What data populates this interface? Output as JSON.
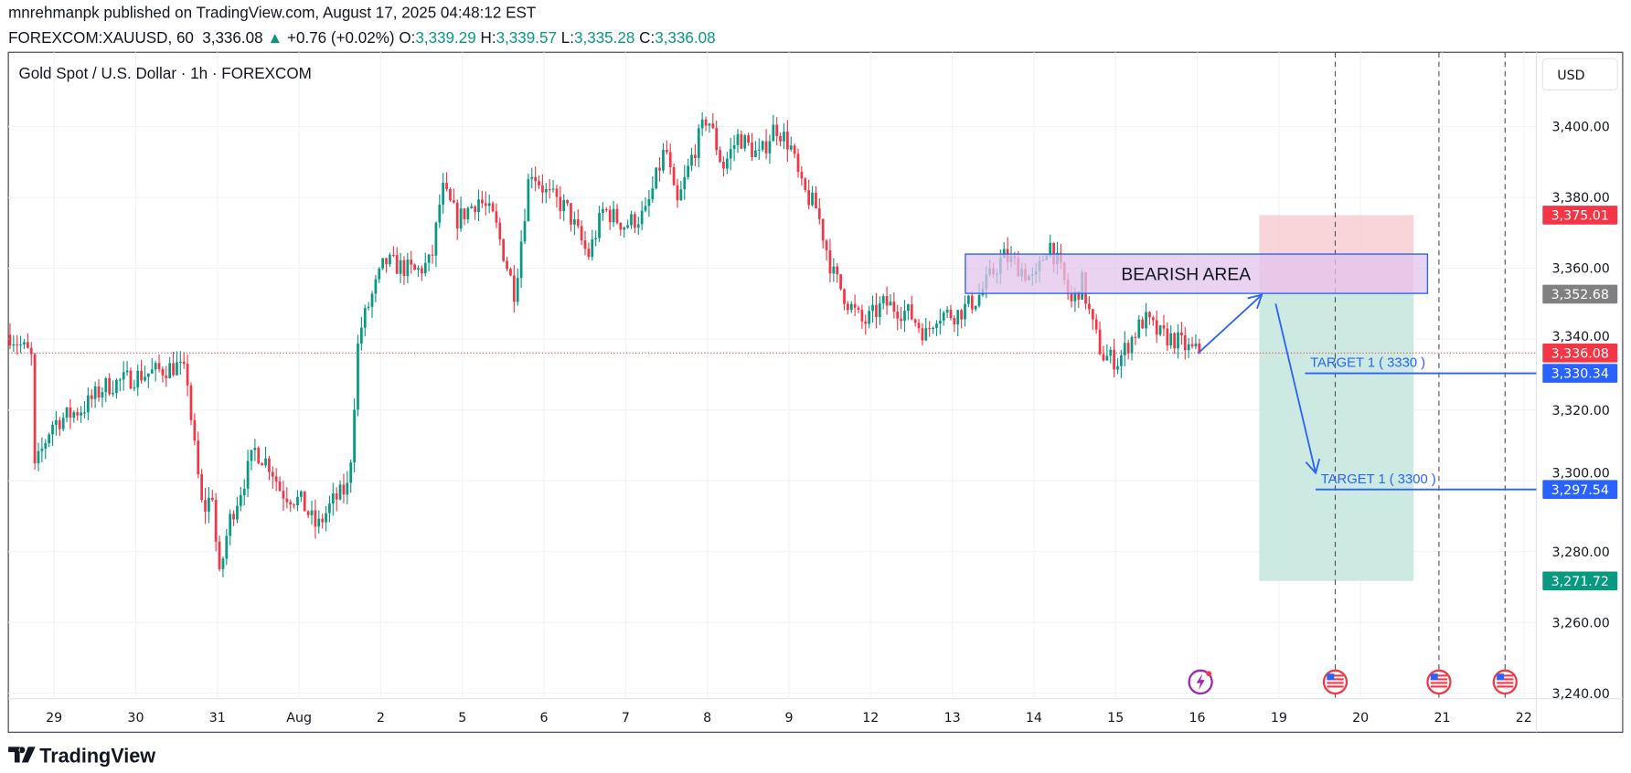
{
  "header": {
    "published_line": "mnrehmanpk published on TradingView.com, August 17, 2025 04:48:12 EST",
    "symbol": "FOREXCOM:XAUUSD, 60",
    "last": "3,336.08",
    "change": "+0.76 (+0.02%)",
    "o_label": "O:",
    "o": "3,339.29",
    "h_label": "H:",
    "h": "3,339.57",
    "l_label": "L:",
    "l": "3,335.28",
    "c_label": "C:",
    "c": "3,336.08"
  },
  "legend_title": "Gold Spot / U.S. Dollar · 1h · FOREXCOM",
  "currency": "USD",
  "footer_brand": "TradingView",
  "colors": {
    "up": "#089981",
    "down": "#f23645",
    "drawing": "#2962ff",
    "stop_zone": "#f7c9cf",
    "target_zone": "#c4e6dd",
    "bearish_fill": "#e1c4ec"
  },
  "chart_data": {
    "type": "candlestick",
    "title": "Gold Spot / U.S. Dollar · 1h · FOREXCOM",
    "xlabel": "",
    "ylabel": "USD",
    "ylim": [
      3236,
      3424
    ],
    "yticks": [
      "3,400.00",
      "3,380.00",
      "3,360.00",
      "3,340.00",
      "3,320.00",
      "3,300.00",
      "3,280.00",
      "3,260.00",
      "3,240.00"
    ],
    "ytick_values": [
      3400,
      3380,
      3360,
      3340,
      3320,
      3300,
      3280,
      3260,
      3240
    ],
    "xticks": [
      "29",
      "30",
      "31",
      "Aug",
      "2",
      "5",
      "6",
      "7",
      "8",
      "9",
      "12",
      "13",
      "14",
      "15",
      "16",
      "19",
      "20",
      "21",
      "22"
    ],
    "grid": true,
    "price_path_day_price": [
      [
        -0.54,
        3341.2
      ],
      [
        -0.28,
        3335.3
      ],
      [
        -0.24,
        3302.8
      ],
      [
        -0.03,
        3316.1
      ],
      [
        0.36,
        3320.6
      ],
      [
        0.61,
        3326.5
      ],
      [
        0.99,
        3329.4
      ],
      [
        1.25,
        3330.9
      ],
      [
        1.5,
        3332.4
      ],
      [
        1.63,
        3329.4
      ],
      [
        1.69,
        3314.6
      ],
      [
        1.82,
        3291.0
      ],
      [
        1.95,
        3296.9
      ],
      [
        2.01,
        3270.3
      ],
      [
        2.14,
        3288.1
      ],
      [
        2.46,
        3308.7
      ],
      [
        2.65,
        3304.3
      ],
      [
        2.78,
        3296.9
      ],
      [
        3.03,
        3294.0
      ],
      [
        3.22,
        3286.6
      ],
      [
        3.41,
        3294.0
      ],
      [
        3.61,
        3298.4
      ],
      [
        3.73,
        3341.2
      ],
      [
        3.86,
        3350.1
      ],
      [
        4.05,
        3361.9
      ],
      [
        4.43,
        3358.9
      ],
      [
        4.62,
        3361.9
      ],
      [
        4.75,
        3382.6
      ],
      [
        4.94,
        3373.7
      ],
      [
        5.2,
        3379.6
      ],
      [
        5.39,
        3373.7
      ],
      [
        5.64,
        3353.0
      ],
      [
        5.83,
        3388.5
      ],
      [
        6.03,
        3381.1
      ],
      [
        6.28,
        3376.7
      ],
      [
        6.54,
        3363.4
      ],
      [
        6.73,
        3376.7
      ],
      [
        6.98,
        3372.2
      ],
      [
        7.24,
        3375.2
      ],
      [
        7.49,
        3394.4
      ],
      [
        7.62,
        3376.7
      ],
      [
        7.81,
        3391.4
      ],
      [
        8.0,
        3403.2
      ],
      [
        8.19,
        3388.5
      ],
      [
        8.38,
        3397.3
      ],
      [
        8.64,
        3391.4
      ],
      [
        8.83,
        3400.3
      ],
      [
        9.02,
        3394.4
      ],
      [
        9.15,
        3382.6
      ],
      [
        9.34,
        3376.7
      ],
      [
        9.53,
        3358.9
      ],
      [
        9.73,
        3350.1
      ],
      [
        9.91,
        3344.2
      ],
      [
        10.17,
        3350.1
      ],
      [
        10.48,
        3347.1
      ],
      [
        10.68,
        3341.2
      ],
      [
        10.8,
        3347.1
      ],
      [
        11.06,
        3347.1
      ],
      [
        11.31,
        3351.6
      ],
      [
        11.5,
        3358.9
      ],
      [
        11.63,
        3363.4
      ],
      [
        11.82,
        3360.4
      ],
      [
        12.01,
        3356.0
      ],
      [
        12.18,
        3367.8
      ],
      [
        12.33,
        3358.9
      ],
      [
        12.46,
        3350.1
      ],
      [
        12.59,
        3356.0
      ],
      [
        12.71,
        3344.2
      ],
      [
        12.84,
        3335.3
      ],
      [
        13.03,
        3333.8
      ],
      [
        13.22,
        3341.2
      ],
      [
        13.35,
        3345.7
      ],
      [
        13.54,
        3341.2
      ],
      [
        13.73,
        3339.8
      ],
      [
        13.92,
        3336.8
      ],
      [
        14.05,
        3336.08
      ]
    ],
    "current_price": 3336.08,
    "price_tags": [
      {
        "label": "3,375.01",
        "value": 3375.01,
        "color": "#f23645"
      },
      {
        "label": "3,352.68",
        "value": 3352.68,
        "color": "#808080"
      },
      {
        "label": "3,336.08",
        "value": 3336.08,
        "color": "#f23645"
      },
      {
        "label": "3,330.34",
        "value": 3330.34,
        "color": "#2962ff"
      },
      {
        "label": "3,297.54",
        "value": 3297.54,
        "color": "#2962ff"
      },
      {
        "label": "3,271.72",
        "value": 3271.72,
        "color": "#089981"
      }
    ],
    "drawings": {
      "bearish_area": {
        "label": "BEARISH AREA",
        "top": 3364.0,
        "bottom": 3352.9,
        "from_day": 11.16,
        "to_day": 16.82
      },
      "short_position": {
        "entry": 3352.68,
        "stop": 3375.01,
        "target": 3271.72,
        "from_day": 14.76,
        "to_day": 16.65
      },
      "arrow_up": {
        "from": [
          14.01,
          3336.0
        ],
        "to": [
          14.79,
          3352.5
        ]
      },
      "arrow_down": {
        "from": [
          14.96,
          3350.0
        ],
        "to": [
          15.45,
          3302.2
        ]
      },
      "targets": [
        {
          "label": "TARGET 1 ( 3330 )",
          "value": 3330.34,
          "from_day": 15.32
        },
        {
          "label": "TARGET 1 ( 3300 )",
          "value": 3297.54,
          "from_day": 15.45
        }
      ],
      "event_lines_day": [
        15.69,
        16.96,
        17.77
      ]
    }
  }
}
